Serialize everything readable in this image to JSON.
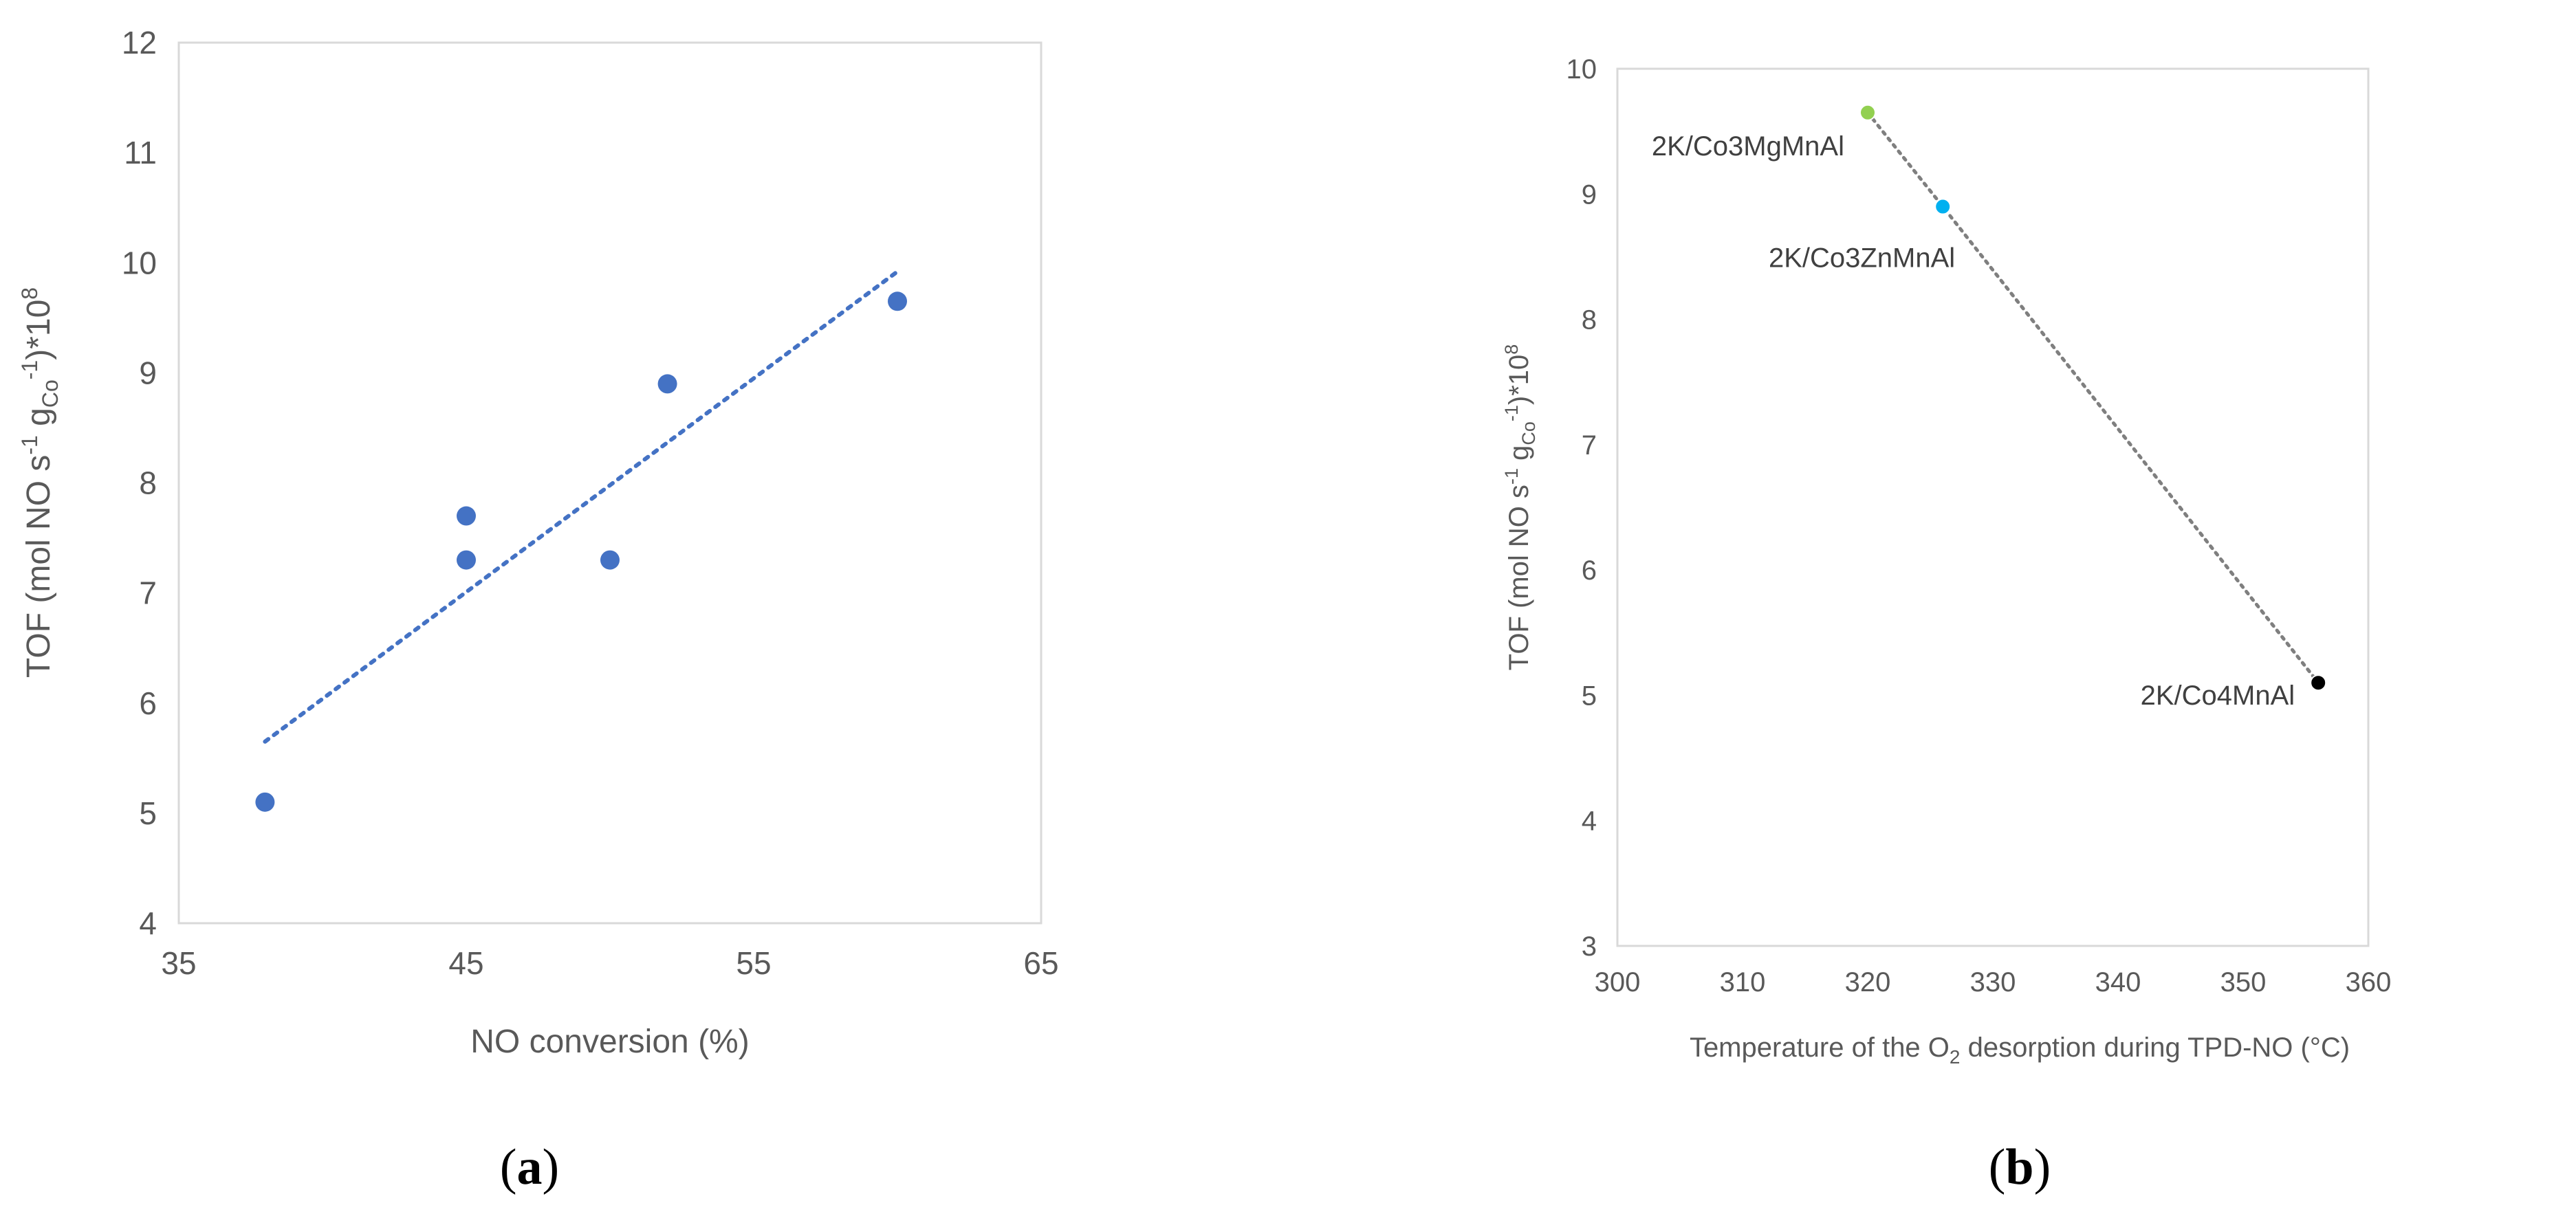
{
  "chart_data": [
    {
      "type": "scatter",
      "title": "",
      "panel_label": {
        "open": "(",
        "letter": "a",
        "close": ")"
      },
      "xlabel": "NO conversion (%)",
      "ylabel": {
        "pre": "TOF (mol NO s",
        "sup1": "-1",
        "mid": " g",
        "sub": "Co",
        "sup2": "-1",
        "post": ")*10",
        "sup3": "8"
      },
      "xlim": [
        35,
        65
      ],
      "ylim": [
        4,
        12
      ],
      "xticks": [
        35,
        45,
        55,
        65
      ],
      "yticks": [
        4,
        5,
        6,
        7,
        8,
        9,
        10,
        11,
        12
      ],
      "grid": false,
      "marker_color": "#4472C4",
      "points": [
        {
          "x": 38,
          "y": 5.1
        },
        {
          "x": 45,
          "y": 7.3
        },
        {
          "x": 45,
          "y": 7.7
        },
        {
          "x": 50,
          "y": 7.3
        },
        {
          "x": 52,
          "y": 8.9
        },
        {
          "x": 60,
          "y": 9.65
        }
      ],
      "trendline": {
        "style": "dotted",
        "color": "#4472C4",
        "from": {
          "x": 38,
          "y": 5.65
        },
        "to": {
          "x": 60,
          "y": 9.92
        }
      }
    },
    {
      "type": "scatter",
      "title": "",
      "panel_label": {
        "open": "(",
        "letter": "b",
        "close": ")"
      },
      "xlabel": {
        "pre": "Temperature of the O",
        "sub": "2",
        "post": " desorption during TPD-NO (°C)"
      },
      "ylabel": {
        "pre": "TOF (mol NO s",
        "sup1": "-1",
        "mid": " g",
        "sub": "Co",
        "sup2": "-1",
        "post": ")*10",
        "sup3": "8"
      },
      "xlim": [
        300,
        360
      ],
      "ylim": [
        3,
        10
      ],
      "xticks": [
        300,
        310,
        320,
        330,
        340,
        350,
        360
      ],
      "yticks": [
        3,
        4,
        5,
        6,
        7,
        8,
        9,
        10
      ],
      "grid": false,
      "line": {
        "style": "dotted",
        "color": "#7F7F7F"
      },
      "points": [
        {
          "label": "2K/Co3MgMnAl",
          "x": 320,
          "y": 9.65,
          "color": "#92D050"
        },
        {
          "label": "2K/Co3ZnMnAl",
          "x": 326,
          "y": 8.9,
          "color": "#00B0F0"
        },
        {
          "label": "2K/Co4MnAl",
          "x": 356,
          "y": 5.1,
          "color": "#000000"
        }
      ]
    }
  ]
}
